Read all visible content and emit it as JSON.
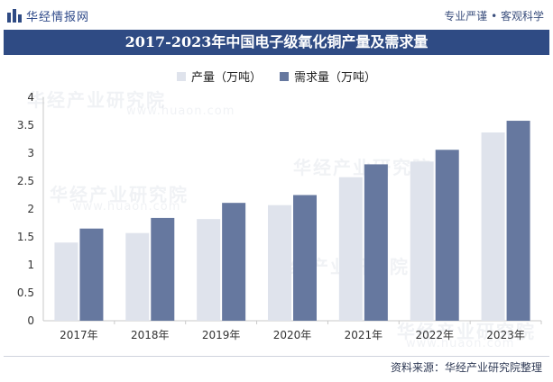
{
  "header": {
    "brand": "华经情报网",
    "tagline": "专业严谨 • 客观科学"
  },
  "title": "2017-2023年中国电子级氧化铜产量及需求量",
  "watermark": {
    "text": "华经产业研究院",
    "sub": "www.huaon.com"
  },
  "source": "资料来源：华经产业研究院整理",
  "colors": {
    "production": "#dfe3ec",
    "demand": "#66789f",
    "title_bg": "#2f4b84"
  },
  "chart_data": {
    "type": "bar",
    "categories": [
      "2017年",
      "2018年",
      "2019年",
      "2020年",
      "2021年",
      "2022年",
      "2023年"
    ],
    "series": [
      {
        "name": "产量（万吨）",
        "values": [
          1.4,
          1.57,
          1.82,
          2.07,
          2.57,
          2.85,
          3.37
        ]
      },
      {
        "name": "需求量（万吨）",
        "values": [
          1.65,
          1.84,
          2.11,
          2.25,
          2.8,
          3.06,
          3.58
        ]
      }
    ],
    "yticks": [
      "0",
      "0.5",
      "1",
      "1.5",
      "2",
      "2.5",
      "3",
      "3.5",
      "4"
    ],
    "ylim": [
      0,
      4
    ],
    "legend": "top-center",
    "grid": false
  }
}
